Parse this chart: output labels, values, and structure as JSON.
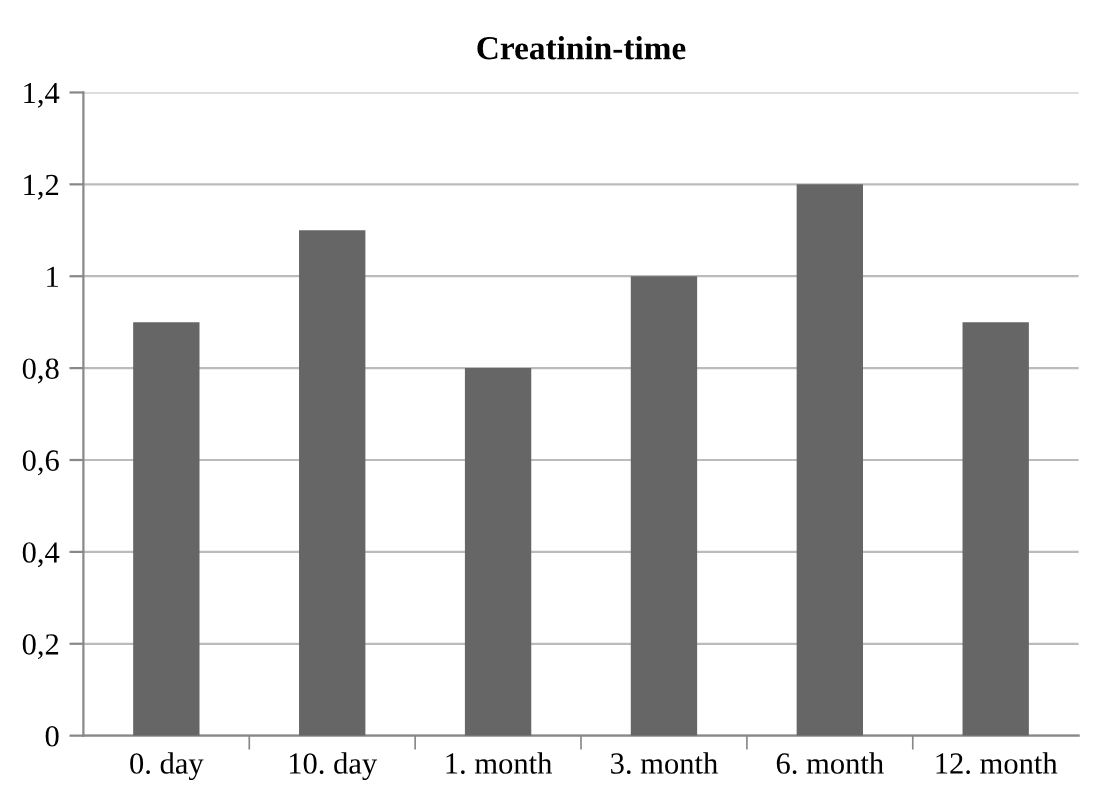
{
  "chart_data": {
    "type": "bar",
    "title": "Creatinin-time",
    "categories": [
      "0. day",
      "10. day",
      "1. month",
      "3. month",
      "6. month",
      "12. month"
    ],
    "values": [
      0.9,
      1.1,
      0.8,
      1.0,
      1.2,
      0.9
    ],
    "color": "#666666",
    "ylim": [
      0,
      1.4
    ],
    "yticks": [
      0,
      {
        "value": 0.2,
        "label": "0,2"
      },
      {
        "value": 0.4,
        "label": "0,4"
      },
      {
        "value": 0.6,
        "label": "0,6"
      },
      {
        "value": 0.8,
        "label": "0,8"
      },
      1,
      {
        "value": 1.2,
        "label": "1,2"
      },
      {
        "value": 1.4,
        "label": "1,4"
      }
    ],
    "grid": "y",
    "legend": false
  }
}
